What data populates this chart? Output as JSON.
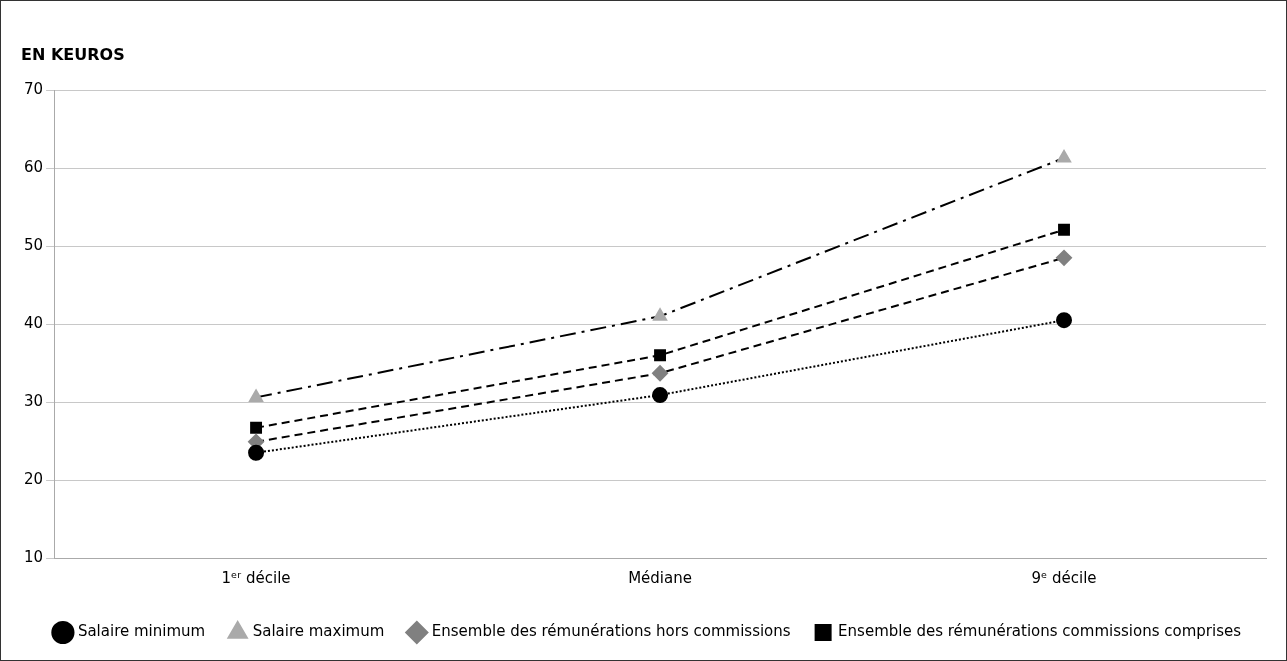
{
  "chart_data": {
    "type": "line",
    "title": "EN KEUROS",
    "categories": [
      "1ᵉʳ décile",
      "Médiane",
      "9ᵉ décile"
    ],
    "series": [
      {
        "name": "Salaire minimum",
        "color": "#000000",
        "marker": "circle",
        "line_style": "dotted",
        "values": [
          23.5,
          30.9,
          40.5
        ]
      },
      {
        "name": "Salaire maximum",
        "color": "#aaaaaa",
        "marker": "triangle",
        "line_style": "dashdot",
        "values": [
          30.6,
          41.0,
          61.3
        ]
      },
      {
        "name": "Ensemble des rémunérations hors commissions",
        "color": "#808080",
        "marker": "diamond",
        "line_style": "dashed",
        "values": [
          24.9,
          33.7,
          48.5
        ]
      },
      {
        "name": "Ensemble des rémunérations commissions comprises",
        "color": "#000000",
        "marker": "square",
        "line_style": "dashed",
        "values": [
          26.7,
          36.0,
          52.1
        ]
      }
    ],
    "ylim": [
      10,
      70
    ],
    "yticks": [
      10,
      20,
      30,
      40,
      50,
      60,
      70
    ],
    "grid": "y",
    "legend": "bottom"
  }
}
